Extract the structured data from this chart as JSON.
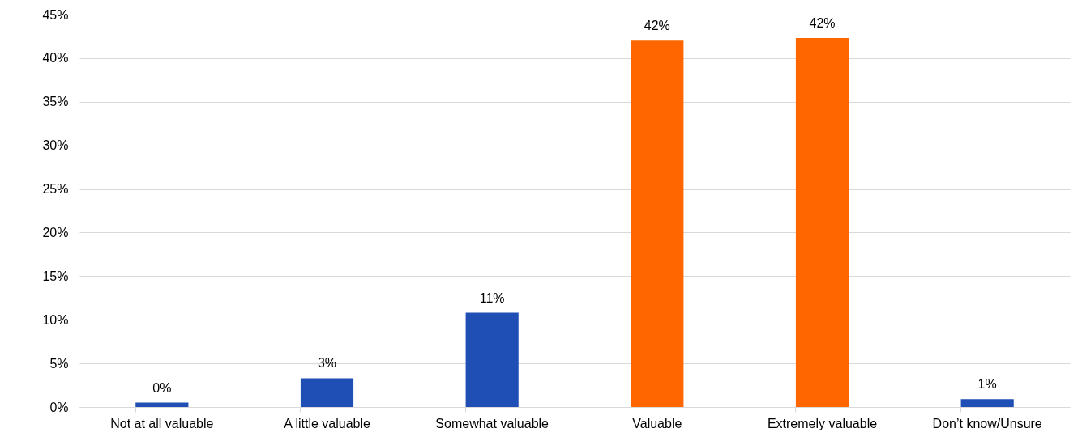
{
  "chart_data": {
    "type": "bar",
    "categories": [
      "Not at all valuable",
      "A little valuable",
      "Somewhat valuable",
      "Valuable",
      "Extremely valuable",
      "Don’t know/Unsure"
    ],
    "values": [
      0.5,
      3.3,
      10.8,
      42,
      42.3,
      0.9
    ],
    "colors": [
      "#1f4eb4",
      "#1f4eb4",
      "#1f4eb4",
      "#ff6600",
      "#ff6600",
      "#1f4eb4"
    ],
    "value_labels": [
      "0%",
      "3%",
      "11%",
      "42%",
      "42%",
      "1%"
    ],
    "ylim": [
      0,
      45
    ],
    "yticks": [
      {
        "value": 0,
        "label": "0%"
      },
      {
        "value": 5,
        "label": "5%"
      },
      {
        "value": 10,
        "label": "10%"
      },
      {
        "value": 15,
        "label": "15%"
      },
      {
        "value": 20,
        "label": "20%"
      },
      {
        "value": 25,
        "label": "25%"
      },
      {
        "value": 30,
        "label": "30%"
      },
      {
        "value": 35,
        "label": "35%"
      },
      {
        "value": 40,
        "label": "40%"
      },
      {
        "value": 45,
        "label": "45%"
      }
    ],
    "grid": "y"
  }
}
